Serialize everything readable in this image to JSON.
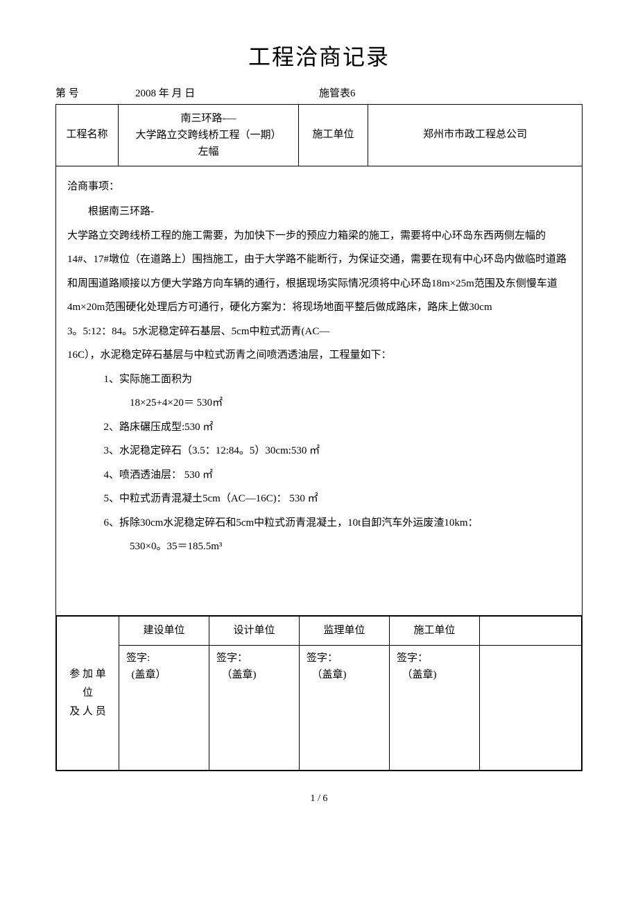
{
  "title": "工程洽商记录",
  "meta": {
    "number_label": "第   号",
    "date": "2008 年   月   日",
    "form_code": "施管表6"
  },
  "header": {
    "project_label": "工程名称",
    "project_name_line1": "南三环路-—",
    "project_name_line2": "大学路立交跨线桥工程（一期）",
    "project_name_line3": "左幅",
    "unit_label": "施工单位",
    "unit_name": "郑州市市政工程总公司"
  },
  "body": {
    "section_label": "洽商事项：",
    "intro": "根据南三环路-",
    "para1": "大学路立交跨线桥工程的施工需要，为加快下一步的预应力箱梁的施工，需要将中心环岛东西两侧左幅的14#、17#墩位（在道路上）围挡施工，由于大学路不能断行，为保证交通，需要在现有中心环岛内做临时道路和周围道路顺接以方便大学路方向车辆的通行，根据现场实际情况须将中心环岛18m×25m范围及东侧慢车道4m×20m范围硬化处理后方可通行，硬化方案为：将现场地面平整后做成路床，路床上做30cm",
    "para2": "3。5:12：84。5水泥稳定碎石基层、5cm中粒式沥青(AC—",
    "para3": "16C），水泥稳定碎石基层与中粒式沥青之间喷洒透油层，工程量如下：",
    "items": [
      {
        "num": "1、",
        "text": "实际施工面积为",
        "sub": "18×25+4×20＝ 530㎡"
      },
      {
        "num": "2、",
        "text": "路床碾压成型:530 ㎡"
      },
      {
        "num": "3、",
        "text": "水泥稳定碎石（3.5：12:84。5）30cm:530 ㎡"
      },
      {
        "num": "4、",
        "text": "喷洒透油层：  530 ㎡"
      },
      {
        "num": "5、",
        "text": "中粒式沥青混凝土5cm（AC—16C)：  530 ㎡"
      },
      {
        "num": "6、",
        "text": "拆除30cm水泥稳定碎石和5cm中粒式沥青混凝土，10t自卸汽车外运废渣10km：",
        "sub": "530×0。35＝185.5m³"
      }
    ]
  },
  "signatures": {
    "side_label_1": "参 加 单",
    "side_label_2": "位",
    "side_label_3": "及 人 员",
    "cols": [
      {
        "header": "建设单位",
        "sign": "签字:",
        "stamp": "(盖章）"
      },
      {
        "header": "设计单位",
        "sign": "签字：",
        "stamp": "（盖章)"
      },
      {
        "header": "监理单位",
        "sign": "签字：",
        "stamp": "（盖章)"
      },
      {
        "header": "施工单位",
        "sign": "签字：",
        "stamp": "（盖章)"
      }
    ]
  },
  "footer": {
    "page": "1 / 6"
  }
}
